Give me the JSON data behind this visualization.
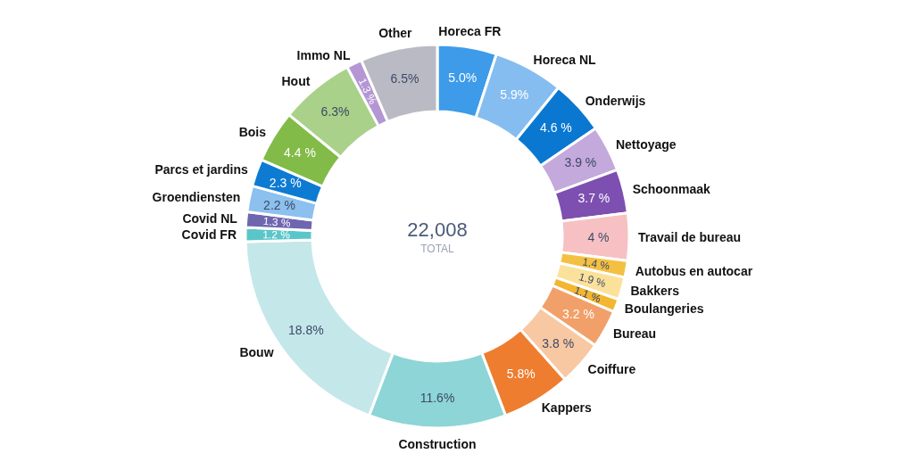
{
  "chart_data": {
    "type": "donut",
    "categories": [
      "Horeca FR",
      "Horeca NL",
      "Onderwijs",
      "Nettoyage",
      "Schoonmaak",
      "Travail de bureau",
      "Autobus en autocar",
      "Bakkers",
      "Boulangeries",
      "Bureau",
      "Coiffure",
      "Kappers",
      "Construction",
      "Bouw",
      "Covid FR",
      "Covid NL",
      "Groendiensten",
      "Parcs et jardins",
      "Bois",
      "Hout",
      "Immo NL",
      "Other"
    ],
    "values": [
      5.0,
      5.9,
      4.6,
      3.9,
      3.7,
      4,
      1.4,
      1.9,
      1.1,
      3.2,
      3.8,
      5.8,
      11.6,
      18.8,
      1.2,
      1.3,
      2.2,
      2.3,
      4.4,
      6.3,
      1.3,
      6.5
    ],
    "value_labels": [
      "5.0%",
      "5.9%",
      "4.6 %",
      "3.9 %",
      "3.7 %",
      "4 %",
      "1.4 %",
      "1.9 %",
      "1.1 %",
      "3.2 %",
      "3.8 %",
      "5.8%",
      "11.6%",
      "18.8%",
      "1.2 %",
      "1.3 %",
      "2.2 %",
      "2.3 %",
      "4.4 %",
      "6.3%",
      "1.3 %",
      "6.5%"
    ],
    "colors": [
      "#3d9be9",
      "#85bdf0",
      "#0a78d0",
      "#c4a9dc",
      "#7d4fb0",
      "#f7c1c4",
      "#f4c042",
      "#fbe19a",
      "#f2b631",
      "#f2a06a",
      "#f8c8a2",
      "#ee7d2f",
      "#8dd5d6",
      "#c4e7ea",
      "#5ac6c9",
      "#6f66b0",
      "#8cc0ee",
      "#0e7bd3",
      "#82bb48",
      "#a9d18a",
      "#b596d4",
      "#babac4"
    ],
    "annotations": [
      "22,008",
      "TOTAL"
    ],
    "legend": false
  }
}
